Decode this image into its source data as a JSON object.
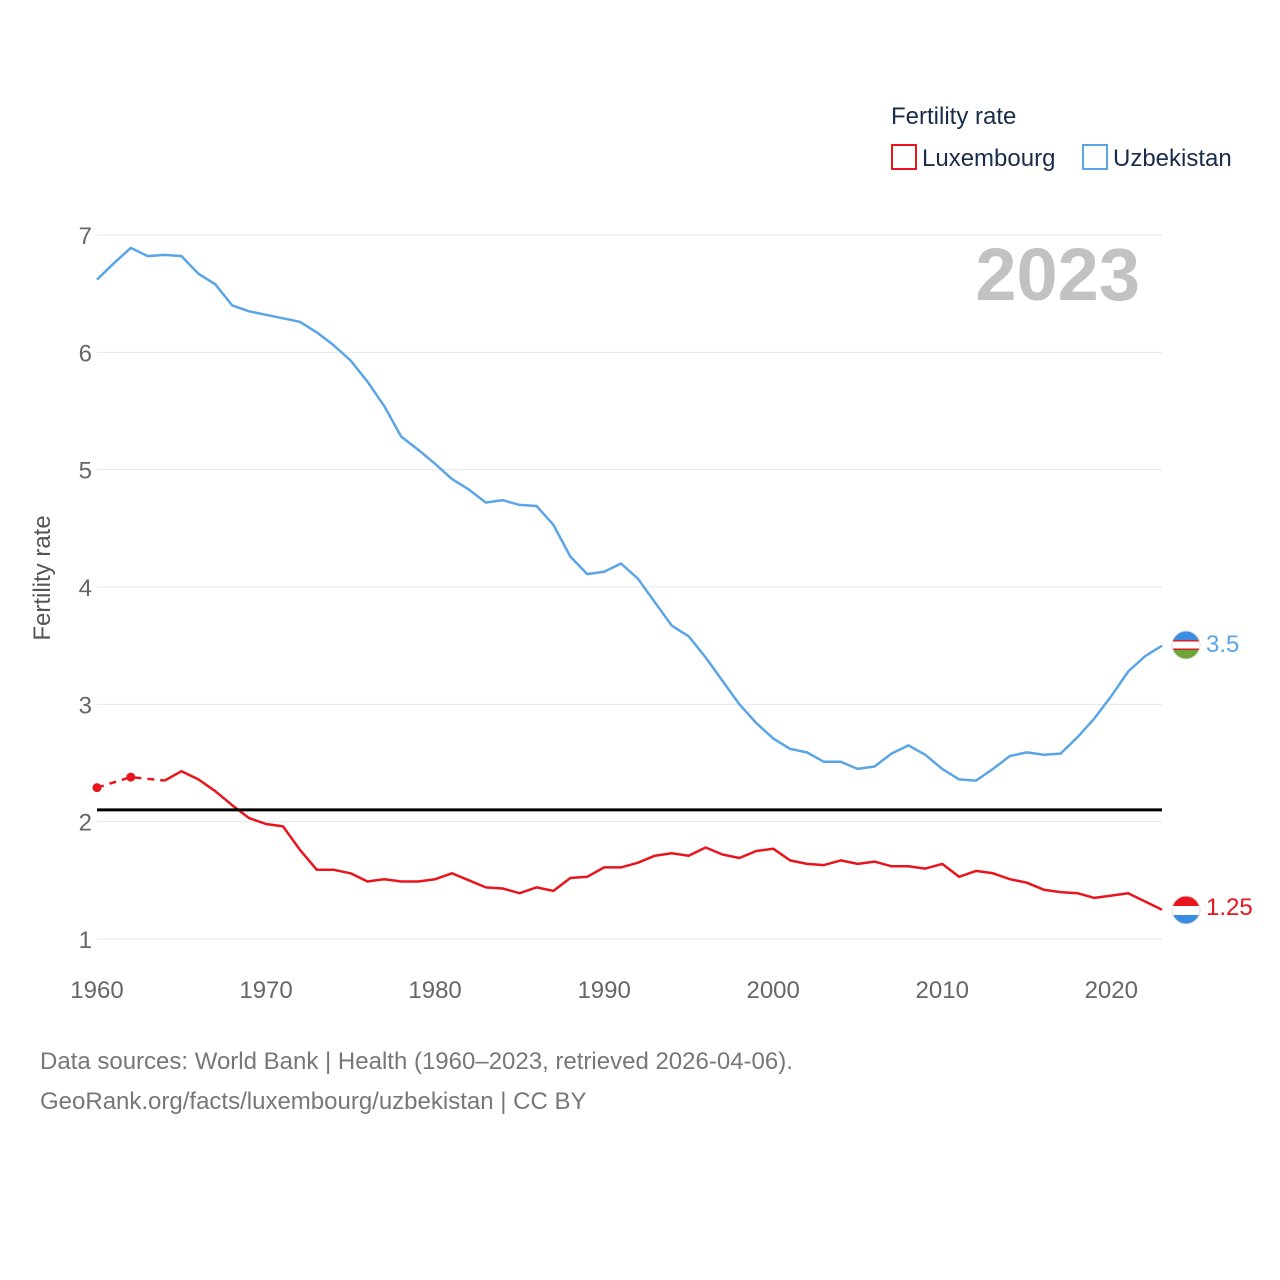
{
  "legend": {
    "title": "Fertility rate",
    "items": [
      {
        "name": "Luxembourg",
        "color": "#e8161c"
      },
      {
        "name": "Uzbekistan",
        "color": "#5aa5e6"
      }
    ]
  },
  "year_label": "2023",
  "end_labels": {
    "uzbekistan": "3.5",
    "luxembourg": "1.25"
  },
  "source": {
    "line1": "Data sources: World Bank | Health (1960–2023, retrieved 2026-04-06).",
    "line2": "GeoRank.org/facts/luxembourg/uzbekistan | CC BY"
  },
  "chart_data": {
    "type": "line",
    "title": "",
    "xlabel": "",
    "ylabel": "Fertility rate",
    "xlim": [
      1960,
      2023
    ],
    "ylim": [
      1,
      7
    ],
    "x_ticks": [
      1960,
      1970,
      1980,
      1990,
      2000,
      2010,
      2020
    ],
    "y_ticks": [
      1,
      2,
      3,
      4,
      5,
      6,
      7
    ],
    "grid": true,
    "reference_line": {
      "y": 2.1,
      "color": "#000000"
    },
    "x": [
      1960,
      1961,
      1962,
      1963,
      1964,
      1965,
      1966,
      1967,
      1968,
      1969,
      1970,
      1971,
      1972,
      1973,
      1974,
      1975,
      1976,
      1977,
      1978,
      1979,
      1980,
      1981,
      1982,
      1983,
      1984,
      1985,
      1986,
      1987,
      1988,
      1989,
      1990,
      1991,
      1992,
      1993,
      1994,
      1995,
      1996,
      1997,
      1998,
      1999,
      2000,
      2001,
      2002,
      2003,
      2004,
      2005,
      2006,
      2007,
      2008,
      2009,
      2010,
      2011,
      2012,
      2013,
      2014,
      2015,
      2016,
      2017,
      2018,
      2019,
      2020,
      2021,
      2022,
      2023
    ],
    "series": [
      {
        "name": "Uzbekistan",
        "color": "#5aa5e6",
        "values": [
          6.62,
          6.76,
          6.89,
          6.82,
          6.83,
          6.82,
          6.67,
          6.58,
          6.4,
          6.35,
          6.32,
          6.29,
          6.26,
          6.17,
          6.06,
          5.93,
          5.75,
          5.54,
          5.28,
          5.17,
          5.05,
          4.92,
          4.83,
          4.72,
          4.74,
          4.7,
          4.69,
          4.53,
          4.26,
          4.11,
          4.13,
          4.2,
          4.07,
          3.87,
          3.67,
          3.58,
          3.4,
          3.2,
          3.0,
          2.84,
          2.71,
          2.62,
          2.59,
          2.51,
          2.51,
          2.45,
          2.47,
          2.58,
          2.65,
          2.57,
          2.45,
          2.36,
          2.35,
          2.45,
          2.56,
          2.59,
          2.57,
          2.58,
          2.72,
          2.88,
          3.07,
          3.28,
          3.41,
          3.5
        ]
      },
      {
        "name": "Luxembourg",
        "color": "#e8161c",
        "values": [
          2.29,
          null,
          2.38,
          null,
          2.35,
          2.43,
          2.36,
          2.26,
          2.14,
          2.03,
          1.98,
          1.96,
          1.76,
          1.59,
          1.59,
          1.56,
          1.49,
          1.51,
          1.49,
          1.49,
          1.51,
          1.56,
          1.5,
          1.44,
          1.43,
          1.39,
          1.44,
          1.41,
          1.52,
          1.53,
          1.61,
          1.61,
          1.65,
          1.71,
          1.73,
          1.71,
          1.78,
          1.72,
          1.69,
          1.75,
          1.77,
          1.67,
          1.64,
          1.63,
          1.67,
          1.64,
          1.66,
          1.62,
          1.62,
          1.6,
          1.64,
          1.53,
          1.58,
          1.56,
          1.51,
          1.48,
          1.42,
          1.4,
          1.39,
          1.35,
          1.37,
          1.39,
          1.32,
          1.25
        ],
        "dashed_segment": {
          "x": [
            1960,
            1962,
            1964
          ],
          "values": [
            2.29,
            2.38,
            2.35
          ],
          "markers": [
            1960,
            1962
          ]
        }
      }
    ]
  }
}
